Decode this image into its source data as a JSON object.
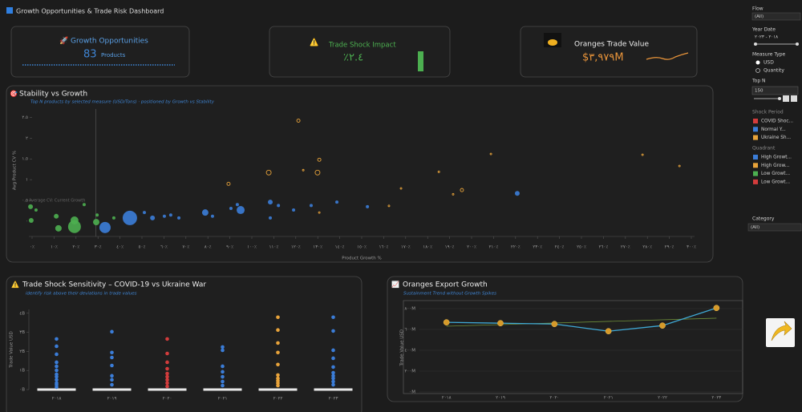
{
  "header": {
    "title": "Growth Opportunities & Trade Risk Dashboard"
  },
  "kpis": [
    {
      "title": "Growth Opportunities",
      "value": "83",
      "unit": "Products"
    },
    {
      "title": "Trade Shock Impact",
      "value": "٪٢.٤"
    },
    {
      "title": "Oranges Trade Value",
      "value": "$٣,٩٧٩M"
    }
  ],
  "filters": {
    "flow": {
      "label": "Flow",
      "value": "(All)"
    },
    "year": {
      "label": "Year Date",
      "value": "٢٠١٨ - ٢٠٢٣"
    },
    "measure": {
      "label": "Measure Type",
      "options": [
        "USD",
        "Quantity"
      ]
    },
    "topn": {
      "label": "Top N",
      "value": "150"
    },
    "category": {
      "label": "Category",
      "value": "(All)"
    }
  },
  "chart_data": [
    {
      "type": "scatter",
      "title": "Stability vs Growth",
      "subtitle": "Top N products by selected measure (USD/Tons) · positioned by Growth vs Stability",
      "xlabel": "Product Growth %",
      "ylabel": "Avg Product CV %",
      "annotation": "Average CV: Current Growth",
      "legend_title": "Quadrant",
      "xlim": [
        0,
        300
      ],
      "ylim": [
        -0.25,
        2.7
      ],
      "xticks": [
        {
          "value": 0,
          "label": "٠٪"
        },
        {
          "value": 10,
          "label": "١٠٪"
        },
        {
          "value": 20,
          "label": "٢٠٪"
        },
        {
          "value": 30,
          "label": "٣٠٪"
        },
        {
          "value": 40,
          "label": "٤٠٪"
        },
        {
          "value": 50,
          "label": "٥٠٪"
        },
        {
          "value": 60,
          "label": "٦٠٪"
        },
        {
          "value": 70,
          "label": "٧٠٪"
        },
        {
          "value": 80,
          "label": "٨٠٪"
        },
        {
          "value": 90,
          "label": "٩٠٪"
        },
        {
          "value": 100,
          "label": "١٠٠٪"
        },
        {
          "value": 110,
          "label": "١١٠٪"
        },
        {
          "value": 120,
          "label": "١٢٠٪"
        },
        {
          "value": 130,
          "label": "١٣٠٪"
        },
        {
          "value": 140,
          "label": "١٤٠٪"
        },
        {
          "value": 150,
          "label": "١٥٠٪"
        },
        {
          "value": 160,
          "label": "١٦٠٪"
        },
        {
          "value": 170,
          "label": "١٧٠٪"
        },
        {
          "value": 180,
          "label": "١٨٠٪"
        },
        {
          "value": 190,
          "label": "١٩٠٪"
        },
        {
          "value": 200,
          "label": "٢٠٠٪"
        },
        {
          "value": 210,
          "label": "٢١٠٪"
        },
        {
          "value": 220,
          "label": "٢٢٠٪"
        },
        {
          "value": 230,
          "label": "٢٣٠٪"
        },
        {
          "value": 240,
          "label": "٢٤٠٪"
        },
        {
          "value": 250,
          "label": "٢٥٠٪"
        },
        {
          "value": 260,
          "label": "٢٦٠٪"
        },
        {
          "value": 270,
          "label": "٢٧٠٪"
        },
        {
          "value": 280,
          "label": "٢٨٠٪"
        },
        {
          "value": 290,
          "label": "٢٩٠٪"
        },
        {
          "value": 300,
          "label": "٣٠٠٪"
        }
      ],
      "yticks": [
        {
          "value": 0,
          "label": "٠"
        },
        {
          "value": 0.5,
          "label": "٠.٥"
        },
        {
          "value": 1,
          "label": "١"
        },
        {
          "value": 1.5,
          "label": "١.٥"
        },
        {
          "value": 2,
          "label": "٢"
        },
        {
          "value": 2.5,
          "label": "٢.٥"
        }
      ],
      "ref_x": 29,
      "series": [
        {
          "name": "High Growt...",
          "color": "#3b7dd8",
          "marker": "dot",
          "x": [
            33.2,
            44.5,
            54.8,
            60.2,
            63.1,
            66.8,
            78.8,
            82.1,
            94.9,
            90.5,
            93.4,
            108.4,
            112.1,
            119,
            127,
            138.7,
            152.6,
            220.8,
            108.4,
            51.1
          ],
          "values": [
            -0.15,
            0.08,
            0.08,
            0.12,
            0.15,
            0.08,
            0.21,
            0.12,
            0.27,
            0.31,
            0.4,
            0.46,
            0.38,
            0.27,
            0.38,
            0.46,
            0.35,
            0.67,
            0.08,
            0.21
          ],
          "sizes": [
            7,
            9,
            3,
            2,
            2,
            2,
            4,
            2,
            5,
            2,
            2,
            3,
            2,
            2,
            2,
            2,
            2,
            3,
            2,
            2
          ]
        },
        {
          "name": "High Grow...",
          "color": "#e8a33a",
          "marker": "ring",
          "x": [
            121.2,
            130.7,
            129.9,
            107.7,
            89.4,
            123.4,
            185.1,
            167.9,
            195.6,
            191.6,
            277.8,
            294.6,
            208.8,
            130.7,
            162.4
          ],
          "values": [
            2.42,
            1.48,
            1.17,
            1.17,
            0.9,
            1.23,
            1.19,
            0.79,
            0.75,
            0.65,
            1.6,
            1.33,
            1.62,
            0.21,
            0.37
          ],
          "sizes": [
            2,
            2,
            3,
            3,
            2,
            1,
            1,
            1,
            2,
            1,
            1,
            1,
            1,
            1,
            1
          ]
        },
        {
          "name": "Low Growt...",
          "color": "#4caf50",
          "marker": "dot",
          "x": [
            -0.4,
            -0.7,
            1.8,
            11,
            12,
            19.3,
            19.3,
            29.2,
            29.6,
            37.2,
            23.7
          ],
          "values": [
            0.02,
            0.35,
            0.27,
            0.12,
            -0.17,
            -0.13,
            0.02,
            -0.02,
            0.15,
            0.08,
            0.4
          ],
          "sizes": [
            3,
            3,
            2,
            3,
            4,
            8,
            5,
            4,
            2,
            2,
            2
          ]
        },
        {
          "name": "Low Growt...",
          "color": "#d33c3c",
          "marker": "dot",
          "x": [],
          "values": [],
          "sizes": []
        }
      ]
    },
    {
      "type": "strip",
      "title": "Trade Shock Sensitivity – COVID-19 vs Ukraine War",
      "subtitle": "identify risk above their deviations in trade values",
      "ylabel": "Trade Value USD",
      "legend_title": "Shock Period",
      "categories": [
        "٢٠١٨",
        "٢٠١٩",
        "٢٠٢٠",
        "٢٠٢١",
        "٢٠٢٢",
        "٢٠٢٣"
      ],
      "ylim": [
        0,
        4.2
      ],
      "yticks": [
        {
          "value": 0,
          "label": "٠B"
        },
        {
          "value": 1,
          "label": "١B"
        },
        {
          "value": 2,
          "label": "٢B"
        },
        {
          "value": 3,
          "label": "٣B"
        },
        {
          "value": 4,
          "label": "٤B"
        }
      ],
      "series": [
        {
          "name": "COVID Shoc...",
          "color": "#d33c3c",
          "x": [
            "٢٠٢٠",
            "٢٠٢٠",
            "٢٠٢٠",
            "٢٠٢٠",
            "٢٠٢٠",
            "٢٠٢٠",
            "٢٠٢٠",
            "٢٠٢٠",
            "٢٠٢٠"
          ],
          "values": [
            2.65,
            1.89,
            1.43,
            1.09,
            0.84,
            0.67,
            0.51,
            0.34,
            0.17
          ]
        },
        {
          "name": "Normal Y...",
          "color": "#3b7dd8",
          "x": [
            "٢٠١٨",
            "٢٠١٨",
            "٢٠١٨",
            "٢٠١٨",
            "٢٠١٨",
            "٢٠١٨",
            "٢٠١٨",
            "٢٠١٨",
            "٢٠١٨",
            "٢٠١٨",
            "٢٠١٨",
            "٢٠١٨",
            "٢٠١٩",
            "٢٠١٩",
            "٢٠١٩",
            "٢٠١٩",
            "٢٠١٩",
            "٢٠١٩",
            "٢٠١٩",
            "٢٠٢١",
            "٢٠٢١",
            "٢٠٢١",
            "٢٠٢١",
            "٢٠٢١",
            "٢٠٢١",
            "٢٠٢١",
            "٢٠٢٣",
            "٢٠٢٣",
            "٢٠٢٣",
            "٢٠٢٣",
            "٢٠٢٣",
            "٢٠٢٣",
            "٢٠٢٣",
            "٢٠٢٣",
            "٢٠٢٣",
            "٢٠٢٣"
          ],
          "values": [
            2.65,
            2.27,
            1.85,
            1.43,
            1.22,
            1.01,
            0.8,
            0.67,
            0.51,
            0.34,
            0.25,
            0.13,
            3.03,
            1.94,
            1.68,
            1.26,
            0.72,
            0.51,
            0.25,
            2.23,
            2.06,
            1.22,
            0.93,
            0.67,
            0.42,
            0.21,
            3.79,
            3.07,
            2.06,
            1.64,
            1.18,
            0.88,
            0.72,
            0.59,
            0.42,
            0.25
          ]
        },
        {
          "name": "Ukraine Sh...",
          "color": "#e8a33a",
          "x": [
            "٢٠٢٢",
            "٢٠٢٢",
            "٢٠٢٢",
            "٢٠٢٢",
            "٢٠٢٢",
            "٢٠٢٢",
            "٢٠٢٢",
            "٢٠٢٢",
            "٢٠٢٢",
            "٢٠٢٢"
          ],
          "values": [
            3.79,
            3.12,
            2.44,
            1.94,
            1.31,
            0.76,
            0.59,
            0.46,
            0.34,
            0.21
          ]
        }
      ]
    },
    {
      "type": "line",
      "title": "Oranges Export Growth",
      "subtitle": "Sustainment Trend without Growth Spikes",
      "ylabel": "Trade Value USD",
      "categories": [
        "٢٠١٨",
        "٢٠١٩",
        "٢٠٢٠",
        "٢٠٢١",
        "٢٠٢٢",
        "٢٠٢٣"
      ],
      "values": [
        668,
        660,
        652,
        583,
        637,
        806
      ],
      "color": "#3fa9d6",
      "marker_color": "#d69a2a",
      "trendline": {
        "values": [
          631,
          708
        ],
        "color": "#6f8f3a"
      },
      "ylim": [
        0,
        850
      ],
      "yticks": [
        {
          "value": 0,
          "label": "٠M"
        },
        {
          "value": 200,
          "label": "٢٠٠M"
        },
        {
          "value": 400,
          "label": "٤٠٠M"
        },
        {
          "value": 600,
          "label": "٦٠٠M"
        },
        {
          "value": 800,
          "label": "٨٠٠M"
        }
      ]
    }
  ]
}
